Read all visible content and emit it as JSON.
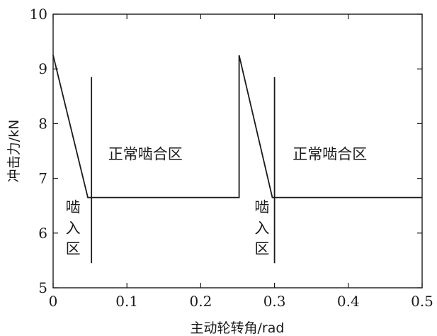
{
  "chart_data": {
    "type": "line",
    "xlabel": "主动轮转角/rad",
    "ylabel": "冲击力/kN",
    "xlim": [
      0,
      0.5
    ],
    "ylim": [
      5,
      10
    ],
    "x_ticks": [
      "0",
      "0.1",
      "0.2",
      "0.3",
      "0.4",
      "0.5"
    ],
    "y_ticks": [
      "5",
      "6",
      "7",
      "8",
      "9",
      "10"
    ],
    "grid": false,
    "series": [
      {
        "x": [
          0.0,
          0.047,
          0.252,
          0.252,
          0.297,
          0.5
        ],
        "y": [
          9.25,
          6.65,
          6.65,
          9.25,
          6.65,
          6.65
        ]
      }
    ],
    "markers": [
      {
        "x": 0.052,
        "y_from": 5.45,
        "y_to": 8.85
      },
      {
        "x": 0.3,
        "y_from": 5.45,
        "y_to": 8.85
      }
    ],
    "annotations": [
      {
        "text": "正常啮合区",
        "x": 0.125,
        "y": 7.35
      },
      {
        "text": "正常啮合区",
        "x": 0.375,
        "y": 7.35
      },
      {
        "text": "啮",
        "x": 0.027,
        "y": 6.38
      },
      {
        "text": "入",
        "x": 0.027,
        "y": 6.0
      },
      {
        "text": "区",
        "x": 0.027,
        "y": 5.62
      },
      {
        "text": "啮",
        "x": 0.283,
        "y": 6.38
      },
      {
        "text": "入",
        "x": 0.283,
        "y": 6.0
      },
      {
        "text": "区",
        "x": 0.283,
        "y": 5.62
      }
    ]
  }
}
